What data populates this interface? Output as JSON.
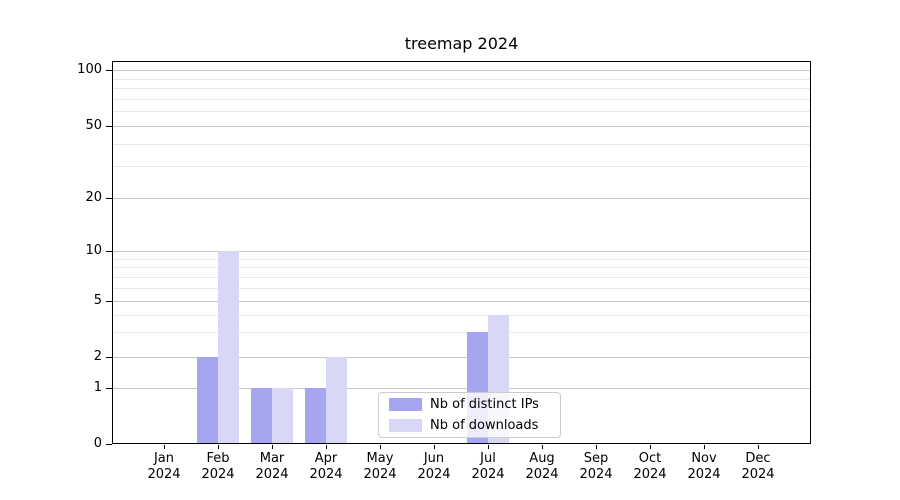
{
  "title": "treemap 2024",
  "chart_data": {
    "type": "bar",
    "title": "treemap 2024",
    "categories": [
      "Jan",
      "Feb",
      "Mar",
      "Apr",
      "May",
      "Jun",
      "Jul",
      "Aug",
      "Sep",
      "Oct",
      "Nov",
      "Dec"
    ],
    "category_year": "2024",
    "series": [
      {
        "name": "Nb of distinct IPs",
        "color": "#a5a5f0",
        "values": [
          0,
          2,
          1,
          1,
          0,
          0,
          3,
          0,
          0,
          0,
          0,
          0
        ]
      },
      {
        "name": "Nb of downloads",
        "color": "#d8d8f6",
        "values": [
          0,
          10,
          1,
          2,
          0,
          0,
          4,
          0,
          0,
          0,
          0,
          0
        ]
      }
    ],
    "xlabel": "",
    "ylabel": "",
    "yticks": [
      0,
      1,
      2,
      5,
      10,
      20,
      50,
      100
    ],
    "minor_yticks": [
      3,
      4,
      6,
      7,
      8,
      9,
      30,
      40,
      60,
      70,
      80,
      90
    ],
    "ylim": [
      0,
      115
    ],
    "yscale": "symlog",
    "grid": true,
    "legend_position": "lower center"
  },
  "legend": {
    "items": [
      {
        "label": "Nb of distinct IPs",
        "color": "#a5a5f0"
      },
      {
        "label": "Nb of downloads",
        "color": "#d8d8f6"
      }
    ]
  }
}
